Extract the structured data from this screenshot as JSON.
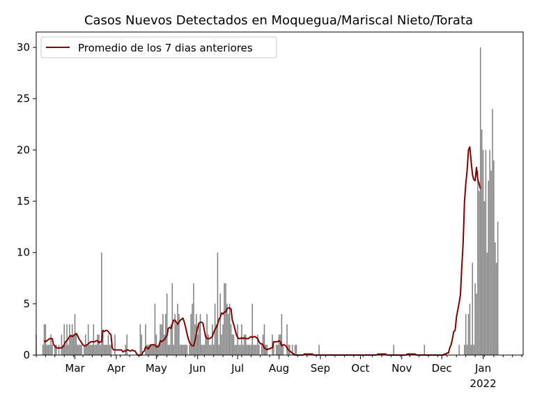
{
  "chart_data": {
    "type": "bar",
    "title": "Casos Nuevos Detectados en Moquegua/Mariscal Nieto/Torata",
    "xlabel": "",
    "ylabel": "",
    "ylim": [
      0,
      31.5
    ],
    "xlim": [
      "2021-01-31",
      "2022-01-31"
    ],
    "y_ticks": [
      0,
      5,
      10,
      15,
      20,
      25,
      30
    ],
    "x_ticks": [
      {
        "date": "2021-03-01",
        "label": "Mar"
      },
      {
        "date": "2021-04-01",
        "label": "Apr"
      },
      {
        "date": "2021-05-01",
        "label": "May"
      },
      {
        "date": "2021-06-01",
        "label": "Jun"
      },
      {
        "date": "2021-07-01",
        "label": "Jul"
      },
      {
        "date": "2021-08-01",
        "label": "Aug"
      },
      {
        "date": "2021-09-01",
        "label": "Sep"
      },
      {
        "date": "2021-10-01",
        "label": "Oct"
      },
      {
        "date": "2021-11-01",
        "label": "Nov"
      },
      {
        "date": "2021-12-01",
        "label": "Dec"
      },
      {
        "date": "2022-01-01",
        "label": "Jan",
        "sublabel": "2022"
      }
    ],
    "legend": {
      "placement": "top-left",
      "entries": [
        "Promedio de los 7 dias anteriores"
      ]
    },
    "grid": false,
    "colors": {
      "bars": "#808080",
      "line": "#800000"
    },
    "series": [
      {
        "type": "bar",
        "start_date": "2021-01-31",
        "values": [
          2,
          0,
          0,
          0,
          0,
          1,
          3,
          3,
          1,
          1,
          1,
          2,
          1,
          0,
          1,
          1,
          0,
          1,
          0,
          2,
          1,
          3,
          1,
          3,
          1,
          3,
          2,
          3,
          2,
          4,
          2,
          1,
          1,
          1,
          1,
          0,
          1,
          2,
          1,
          3,
          1,
          1,
          1,
          3,
          1,
          1,
          2,
          2,
          1,
          10,
          2,
          1,
          1,
          1,
          2,
          1,
          1,
          0,
          0,
          2,
          0,
          0,
          0,
          0,
          0,
          0,
          0,
          1,
          2,
          0,
          0,
          0,
          0,
          0,
          0,
          0,
          0,
          0,
          3,
          2,
          0,
          0,
          3,
          1,
          1,
          1,
          1,
          1,
          1,
          5,
          2,
          1,
          1,
          3,
          3,
          4,
          2,
          4,
          6,
          1,
          1,
          3,
          7,
          1,
          4,
          3,
          5,
          4,
          1,
          1,
          1,
          1,
          1,
          1,
          0,
          1,
          4,
          5,
          7,
          3,
          4,
          2,
          3,
          4,
          1,
          1,
          1,
          2,
          4,
          2,
          1,
          1,
          3,
          1,
          5,
          3,
          10,
          1,
          6,
          2,
          3,
          7,
          7,
          5,
          4,
          5,
          3,
          2,
          2,
          1,
          1,
          3,
          1,
          1,
          3,
          1,
          2,
          2,
          1,
          1,
          1,
          1,
          5,
          1,
          1,
          1,
          2,
          1,
          0,
          1,
          2,
          3,
          1,
          1,
          0,
          0,
          0,
          2,
          1,
          0,
          1,
          1,
          2,
          2,
          4,
          1,
          0,
          0,
          3,
          1,
          1,
          0,
          1,
          0,
          1,
          1,
          0,
          0,
          0,
          0,
          0,
          0,
          0,
          0,
          0,
          0,
          0,
          0,
          0,
          0,
          0,
          0,
          1,
          0,
          0,
          0,
          0,
          0,
          0,
          0,
          0,
          0,
          0,
          0,
          0,
          0,
          0,
          0,
          0,
          0,
          0,
          0,
          0,
          0,
          0,
          0,
          0,
          0,
          0,
          0,
          0,
          0,
          0,
          0,
          0,
          0,
          0,
          0,
          0,
          0,
          0,
          0,
          0,
          0,
          0,
          0,
          0,
          0,
          0,
          0,
          0,
          0,
          0,
          0,
          0,
          0,
          0,
          0,
          1,
          0,
          0,
          0,
          0,
          0,
          0,
          0,
          0,
          0,
          0,
          0,
          0,
          0,
          0,
          0,
          0,
          0,
          0,
          0,
          0,
          0,
          0,
          1,
          0,
          0,
          0,
          0,
          0,
          0,
          0,
          0,
          0,
          0,
          0,
          0,
          0,
          0,
          0,
          0,
          0,
          0,
          0,
          0,
          0,
          0,
          0,
          0,
          0,
          1,
          0,
          0,
          0,
          1,
          4,
          1,
          4,
          5,
          1,
          9,
          1,
          7,
          6,
          18,
          16,
          30,
          22,
          20,
          15,
          20,
          10,
          17,
          20,
          18,
          24,
          19,
          11,
          9,
          13
        ]
      },
      {
        "type": "line",
        "name": "Promedio de los 7 dias anteriores",
        "start_date": "2021-02-06",
        "values": [
          1.4,
          1.3,
          1.4,
          1.5,
          1.6,
          1.6,
          1.6,
          1.0,
          0.9,
          0.7,
          0.7,
          0.7,
          0.7,
          0.7,
          0.8,
          1.0,
          1.3,
          1.4,
          1.6,
          1.8,
          1.9,
          1.8,
          1.9,
          2.0,
          2.1,
          1.9,
          1.6,
          1.4,
          1.2,
          1.0,
          0.9,
          0.9,
          1.0,
          1.1,
          1.2,
          1.3,
          1.3,
          1.3,
          1.3,
          1.4,
          1.4,
          1.2,
          1.3,
          1.3,
          2.4,
          2.3,
          2.4,
          2.4,
          2.3,
          2.1,
          2.0,
          0.7,
          0.5,
          0.5,
          0.5,
          0.5,
          0.5,
          0.5,
          0.5,
          0.3,
          0.4,
          0.4,
          0.5,
          0.5,
          0.4,
          0.4,
          0.5,
          0.4,
          0.4,
          0.2,
          0.0,
          0.0,
          0.0,
          0.0,
          0.3,
          0.4,
          0.8,
          0.7,
          0.6,
          0.8,
          1.0,
          1.0,
          1.0,
          1.0,
          0.8,
          0.8,
          0.9,
          1.4,
          1.3,
          1.4,
          1.5,
          1.7,
          1.9,
          2.6,
          2.7,
          2.6,
          3.0,
          3.4,
          3.4,
          3.2,
          3.0,
          3.2,
          3.4,
          3.5,
          3.6,
          3.2,
          2.7,
          2.1,
          1.6,
          1.2,
          1.0,
          0.9,
          0.9,
          1.4,
          2.0,
          2.7,
          3.1,
          3.2,
          3.2,
          3.1,
          2.4,
          1.8,
          1.6,
          1.6,
          1.6,
          1.7,
          1.8,
          2.2,
          2.5,
          2.7,
          3.0,
          3.5,
          3.7,
          4.1,
          4.0,
          4.2,
          4.2,
          4.5,
          4.6,
          4.6,
          4.5,
          3.4,
          3.0,
          2.5,
          2.0,
          1.7,
          1.6,
          1.6,
          1.7,
          1.6,
          1.7,
          1.6,
          1.6,
          1.6,
          1.7,
          1.8,
          1.7,
          1.8,
          1.8,
          1.7,
          1.6,
          1.3,
          1.1,
          1.1,
          1.0,
          0.7,
          0.6,
          0.5,
          0.6,
          0.6,
          0.7,
          0.7,
          1.3,
          1.3,
          1.3,
          1.3,
          1.4,
          1.3,
          0.9,
          1.0,
          1.0,
          0.9,
          0.7,
          0.5,
          0.4,
          0.3,
          0.2,
          0.1,
          0.0,
          0.0,
          0.0,
          0.0,
          0.0,
          0.0,
          0.0,
          0.1,
          0.1,
          0.1,
          0.1,
          0.1,
          0.1,
          0.1,
          0.0,
          0.0,
          0.0,
          0.0,
          0.0,
          0.0,
          0.0,
          0.0,
          0.0,
          0.0,
          0.0,
          0.0,
          0.0,
          0.0,
          0.0,
          0.0,
          0.0,
          0.0,
          0.0,
          0.0,
          0.0,
          0.0,
          0.0,
          0.0,
          0.0,
          0.0,
          0.0,
          0.0,
          0.0,
          0.0,
          0.0,
          0.0,
          0.0,
          0.0,
          0.0,
          0.0,
          0.0,
          0.0,
          0.0,
          0.0,
          0.0,
          0.0,
          0.0,
          0.0,
          0.0,
          0.0,
          0.0,
          0.0,
          0.1,
          0.1,
          0.1,
          0.1,
          0.1,
          0.1,
          0.1,
          0.0,
          0.0,
          0.0,
          0.0,
          0.0,
          0.0,
          0.0,
          0.0,
          0.0,
          0.0,
          0.0,
          0.0,
          0.0,
          0.0,
          0.0,
          0.1,
          0.1,
          0.1,
          0.1,
          0.1,
          0.1,
          0.1,
          0.0,
          0.0,
          0.0,
          0.0,
          0.0,
          0.0,
          0.0,
          0.0,
          0.0,
          0.0,
          0.0,
          0.0,
          0.0,
          0.0,
          0.0,
          0.0,
          0.0,
          0.0,
          0.0,
          0.0,
          0.0,
          0.1,
          0.1,
          0.2,
          0.2,
          0.7,
          1.0,
          1.6,
          2.3,
          2.4,
          3.7,
          4.4,
          5.1,
          5.9,
          8.6,
          10.9,
          14.9,
          16.7,
          18.0,
          20.0,
          20.3,
          18.9,
          17.6,
          17.1,
          17.0,
          18.3,
          17.1,
          16.7,
          16.2
        ]
      }
    ]
  }
}
